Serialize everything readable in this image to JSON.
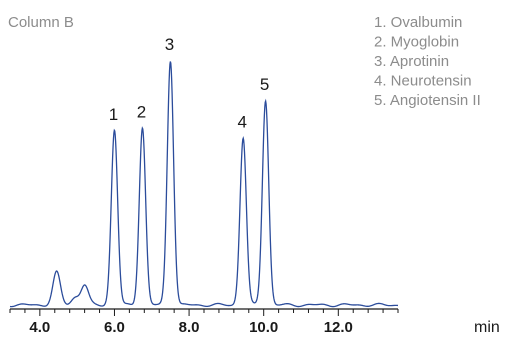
{
  "chart_data": {
    "type": "line",
    "title": "Column B",
    "xlabel": "min",
    "ylabel": "",
    "xlim": [
      3.2,
      13.6
    ],
    "ylim": [
      0,
      100
    ],
    "grid": false,
    "legend_position": "top-right",
    "x_ticks": [
      4.0,
      6.0,
      8.0,
      10.0,
      12.0
    ],
    "x_tick_labels": [
      "4.0",
      "6.0",
      "8.0",
      "10.0",
      "12.0"
    ],
    "x_minor_step": 0.4,
    "line_color": "#2b4c9b",
    "legend": [
      "1. Ovalbumin",
      "2. Myoglobin",
      "3. Aprotinin",
      "4. Neurotensin",
      "5. Angiotensin II"
    ],
    "baseline": 2,
    "peaks": [
      {
        "label": "1",
        "x": 6.0,
        "y": 72
      },
      {
        "label": "2",
        "x": 6.75,
        "y": 73
      },
      {
        "label": "3",
        "x": 7.5,
        "y": 100
      },
      {
        "label": "4",
        "x": 9.45,
        "y": 69
      },
      {
        "label": "5",
        "x": 10.05,
        "y": 84
      }
    ],
    "minor_peaks": [
      {
        "x": 4.45,
        "y": 15
      },
      {
        "x": 4.95,
        "y": 5
      },
      {
        "x": 5.2,
        "y": 10
      }
    ]
  }
}
